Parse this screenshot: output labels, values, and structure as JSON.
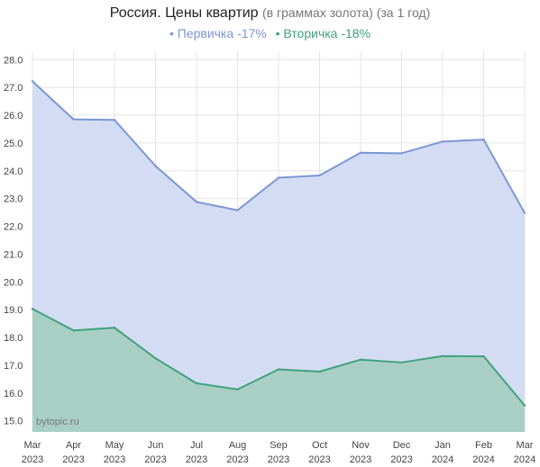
{
  "chart_data": {
    "type": "area",
    "title": "Россия. Цены квартир",
    "subtitle": "(в граммах золота) (за 1 год)",
    "xlabel": "",
    "ylabel": "",
    "x": [
      [
        "Mar",
        "2023"
      ],
      [
        "Apr",
        "2023"
      ],
      [
        "May",
        "2023"
      ],
      [
        "Jun",
        "2023"
      ],
      [
        "Jul",
        "2023"
      ],
      [
        "Aug",
        "2023"
      ],
      [
        "Sep",
        "2023"
      ],
      [
        "Oct",
        "2023"
      ],
      [
        "Nov",
        "2023"
      ],
      [
        "Dec",
        "2023"
      ],
      [
        "Jan",
        "2024"
      ],
      [
        "Feb",
        "2024"
      ],
      [
        "Mar",
        "2024"
      ]
    ],
    "ylim": [
      14.6,
      28.3
    ],
    "yticks": [
      "15.0",
      "16.0",
      "17.0",
      "18.0",
      "19.0",
      "20.0",
      "21.0",
      "22.0",
      "23.0",
      "24.0",
      "25.0",
      "26.0",
      "27.0",
      "28.0"
    ],
    "grid": true,
    "legend_position": "top-center",
    "series": [
      {
        "name": "Первичка -17%",
        "color": "#7b96d4",
        "fill": "#d3dcf3",
        "values": [
          27.22,
          25.85,
          25.83,
          24.17,
          22.88,
          22.58,
          23.75,
          23.83,
          24.65,
          24.63,
          25.05,
          25.12,
          22.48
        ]
      },
      {
        "name": "Вторичка -18%",
        "color": "#3fa27c",
        "fill": "#a9cfc4",
        "values": [
          19.03,
          18.25,
          18.35,
          17.25,
          16.35,
          16.13,
          16.85,
          16.77,
          17.2,
          17.1,
          17.33,
          17.32,
          15.55
        ]
      }
    ],
    "watermark": "bytopic.ru"
  }
}
